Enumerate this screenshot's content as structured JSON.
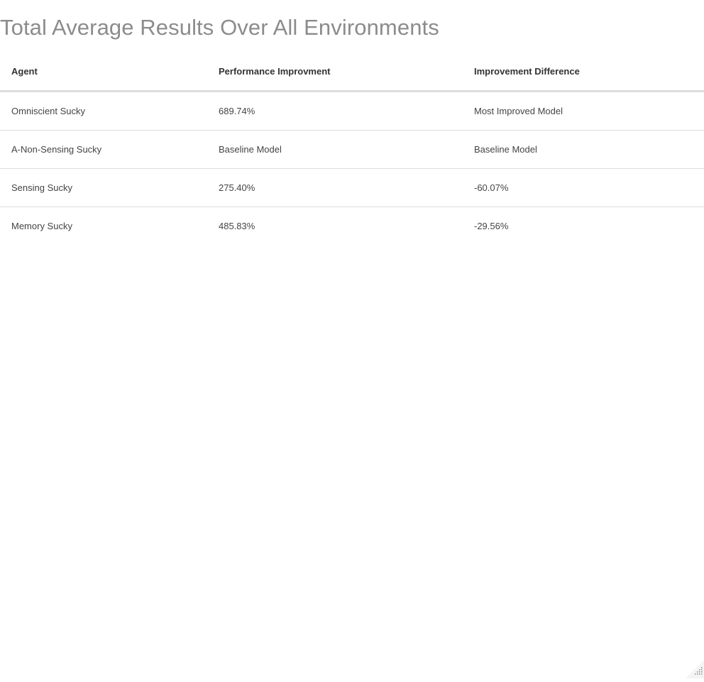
{
  "page": {
    "title": "Total Average Results Over All Environments"
  },
  "table": {
    "headers": {
      "agent": "Agent",
      "performance": "Performance Improvment",
      "difference": "Improvement Difference"
    },
    "rows": [
      {
        "agent": "Omniscient Sucky",
        "performance": "689.74%",
        "difference": "Most Improved Model"
      },
      {
        "agent": "A-Non-Sensing Sucky",
        "performance": "Baseline Model",
        "difference": "Baseline Model"
      },
      {
        "agent": "Sensing Sucky",
        "performance": "275.40%",
        "difference": "-60.07%"
      },
      {
        "agent": "Memory Sucky",
        "performance": "485.83%",
        "difference": "-29.56%"
      }
    ]
  },
  "icons": {
    "resize_handle": "resize-grip-icon"
  },
  "colors": {
    "title": "#8c8c8c",
    "header_text": "#333333",
    "cell_text": "#444444",
    "rule": "#dddddd",
    "background": "#ffffff"
  }
}
